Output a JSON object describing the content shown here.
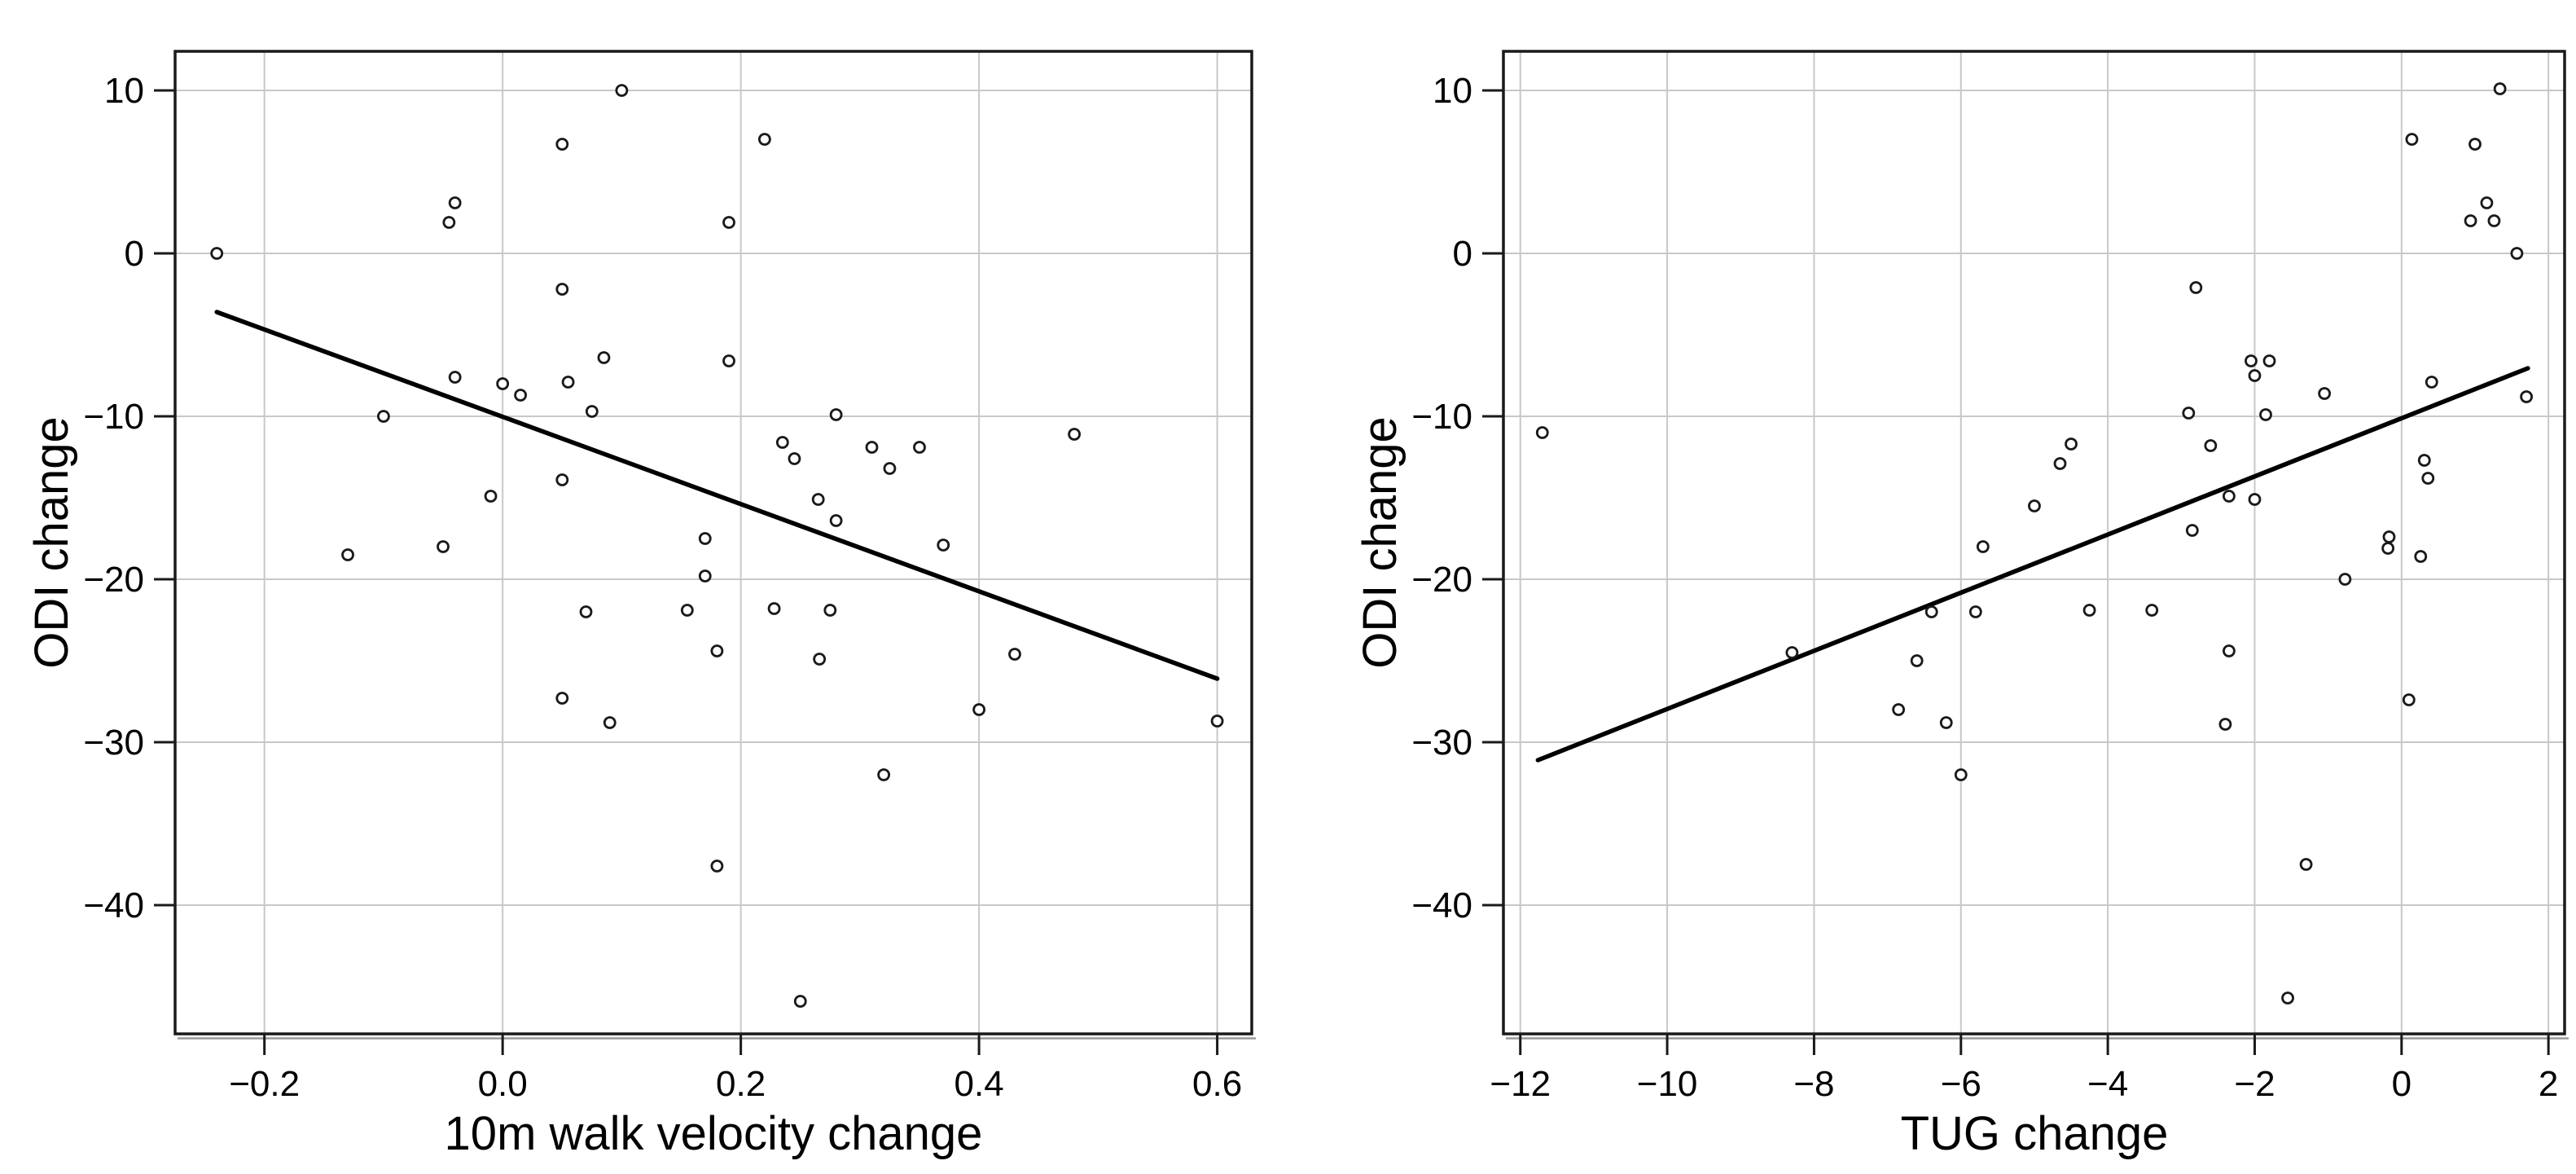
{
  "figure": {
    "background": "#ffffff",
    "panel_count": 2
  },
  "colors": {
    "frame": "#1a1a1a",
    "grid": "#c8c8c8",
    "marker_stroke": "#1a1a1a",
    "marker_fill": "#ffffff",
    "trend_line": "#000000",
    "text": "#000000",
    "axis_shadow": "#9a9a9a"
  },
  "chart_data": [
    {
      "type": "scatter",
      "title": "",
      "xlabel": "10m walk velocity change",
      "ylabel": "ODI change",
      "xlim": [
        -0.275,
        0.629
      ],
      "ylim": [
        -47.9,
        12.4
      ],
      "xticks": [
        -0.2,
        0.0,
        0.2,
        0.4,
        0.6
      ],
      "xtick_labels": [
        "−0.2",
        "0.0",
        "0.2",
        "0.4",
        "0.6"
      ],
      "yticks": [
        10,
        0,
        -10,
        -20,
        -30,
        -40
      ],
      "ytick_labels": [
        "10",
        "0",
        "−10",
        "−20",
        "−30",
        "−40"
      ],
      "grid": true,
      "legend": "none",
      "marker": "open-circle",
      "points": [
        [
          -0.24,
          0
        ],
        [
          0.1,
          10
        ],
        [
          0.05,
          6.7
        ],
        [
          0.22,
          7
        ],
        [
          -0.04,
          3.1
        ],
        [
          -0.045,
          1.9
        ],
        [
          0.19,
          1.9
        ],
        [
          0.05,
          -2.2
        ],
        [
          0.085,
          -6.4
        ],
        [
          0.19,
          -6.6
        ],
        [
          -0.04,
          -7.6
        ],
        [
          0.0,
          -8.0
        ],
        [
          0.015,
          -8.7
        ],
        [
          0.055,
          -7.9
        ],
        [
          0.075,
          -9.7
        ],
        [
          -0.1,
          -10
        ],
        [
          0.28,
          -9.9
        ],
        [
          0.48,
          -11.1
        ],
        [
          0.235,
          -11.6
        ],
        [
          0.31,
          -11.9
        ],
        [
          0.35,
          -11.9
        ],
        [
          0.245,
          -12.6
        ],
        [
          0.325,
          -13.2
        ],
        [
          0.05,
          -13.9
        ],
        [
          -0.01,
          -14.9
        ],
        [
          0.265,
          -15.1
        ],
        [
          0.28,
          -16.4
        ],
        [
          0.17,
          -17.5
        ],
        [
          -0.05,
          -18
        ],
        [
          -0.13,
          -18.5
        ],
        [
          0.37,
          -17.9
        ],
        [
          0.17,
          -19.8
        ],
        [
          0.07,
          -22
        ],
        [
          0.155,
          -21.9
        ],
        [
          0.228,
          -21.8
        ],
        [
          0.275,
          -21.9
        ],
        [
          0.18,
          -24.4
        ],
        [
          0.43,
          -24.6
        ],
        [
          0.266,
          -24.9
        ],
        [
          0.05,
          -27.3
        ],
        [
          0.09,
          -28.8
        ],
        [
          0.4,
          -28
        ],
        [
          0.6,
          -28.7
        ],
        [
          0.32,
          -32
        ],
        [
          0.18,
          -37.6
        ],
        [
          0.25,
          -45.9
        ]
      ],
      "trend_line": {
        "x1": -0.24,
        "y1": -3.6,
        "x2": 0.6,
        "y2": -26.1
      }
    },
    {
      "type": "scatter",
      "title": "",
      "xlabel": "TUG change",
      "ylabel": "ODI change",
      "xlim": [
        -12.23,
        2.22
      ],
      "ylim": [
        -47.9,
        12.4
      ],
      "xticks": [
        -12,
        -10,
        -8,
        -6,
        -4,
        -2,
        0,
        2
      ],
      "xtick_labels": [
        "−12",
        "−10",
        "−8",
        "−6",
        "−4",
        "−2",
        "0",
        "2"
      ],
      "yticks": [
        10,
        0,
        -10,
        -20,
        -30,
        -40
      ],
      "ytick_labels": [
        "10",
        "0",
        "−10",
        "−20",
        "−30",
        "−40"
      ],
      "grid": true,
      "legend": "none",
      "marker": "open-circle",
      "points": [
        [
          1.34,
          10.1
        ],
        [
          0.14,
          7
        ],
        [
          1.0,
          6.7
        ],
        [
          1.16,
          3.1
        ],
        [
          0.94,
          2
        ],
        [
          1.26,
          2
        ],
        [
          1.57,
          0
        ],
        [
          -2.8,
          -2.1
        ],
        [
          -2.05,
          -6.6
        ],
        [
          -1.8,
          -6.6
        ],
        [
          -2.0,
          -7.5
        ],
        [
          0.41,
          -7.9
        ],
        [
          -1.05,
          -8.6
        ],
        [
          1.7,
          -8.8
        ],
        [
          -2.9,
          -9.8
        ],
        [
          -1.85,
          -9.9
        ],
        [
          -11.7,
          -11
        ],
        [
          -2.6,
          -11.8
        ],
        [
          -4.5,
          -11.7
        ],
        [
          -4.65,
          -12.9
        ],
        [
          0.31,
          -12.7
        ],
        [
          0.36,
          -13.8
        ],
        [
          -2.35,
          -14.9
        ],
        [
          -2.0,
          -15.1
        ],
        [
          -5.0,
          -15.5
        ],
        [
          -2.85,
          -17
        ],
        [
          -0.17,
          -17.4
        ],
        [
          -0.185,
          -18.1
        ],
        [
          -5.7,
          -18
        ],
        [
          0.26,
          -18.6
        ],
        [
          -0.77,
          -20
        ],
        [
          -4.25,
          -21.9
        ],
        [
          -3.4,
          -21.9
        ],
        [
          -6.4,
          -22
        ],
        [
          -5.8,
          -22
        ],
        [
          -2.35,
          -24.4
        ],
        [
          -8.3,
          -24.5
        ],
        [
          -6.6,
          -25
        ],
        [
          0.1,
          -27.4
        ],
        [
          -6.85,
          -28
        ],
        [
          -6.2,
          -28.8
        ],
        [
          -2.4,
          -28.9
        ],
        [
          -6.0,
          -32
        ],
        [
          -1.3,
          -37.5
        ],
        [
          -1.55,
          -45.7
        ]
      ],
      "trend_line": {
        "x1": -11.76,
        "y1": -31.1,
        "x2": 1.72,
        "y2": -7.05
      }
    }
  ]
}
